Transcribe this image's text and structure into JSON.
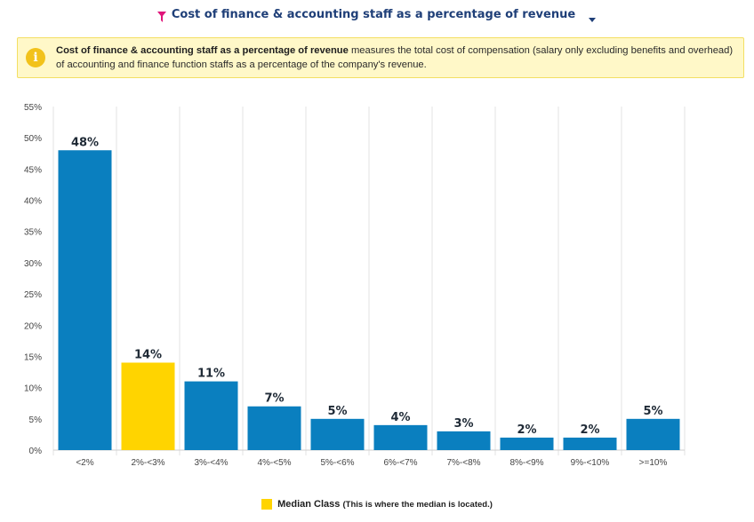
{
  "header": {
    "metric_title": "Cost of finance & accounting staff as a percentage of revenue",
    "filter_icon": "filter-funnel-icon",
    "dropdown_icon": "caret-down-icon",
    "filter_icon_color": "#e0157a",
    "title_color": "#1f3f78"
  },
  "info": {
    "icon": "info-icon",
    "lead": "Cost of finance & accounting staff as a percentage of revenue",
    "text_part1": " measures the total cost of compensation (salary only excluding benefits and overhead) of accounting and finance function staffs as a percentage of the company's revenue."
  },
  "chart_data": {
    "type": "bar",
    "categories": [
      "<2%",
      "2%-<3%",
      "3%-<4%",
      "4%-<5%",
      "5%-<6%",
      "6%-<7%",
      "7%-<8%",
      "8%-<9%",
      "9%-<10%",
      ">=10%"
    ],
    "values": [
      48,
      14,
      11,
      7,
      5,
      4,
      3,
      2,
      2,
      5
    ],
    "data_labels": [
      "48%",
      "14%",
      "11%",
      "7%",
      "5%",
      "4%",
      "3%",
      "2%",
      "2%",
      "5%"
    ],
    "median_index": 1,
    "ylim": [
      0,
      55
    ],
    "yticks": [
      0,
      5,
      10,
      15,
      20,
      25,
      30,
      35,
      40,
      45,
      50,
      55
    ],
    "ytick_labels": [
      "0%",
      "5%",
      "10%",
      "15%",
      "20%",
      "25%",
      "30%",
      "35%",
      "40%",
      "45%",
      "50%",
      "55%"
    ],
    "grid": "vertical",
    "colors": {
      "bar": "#0a7fbf",
      "median": "#ffd400",
      "grid": "#e3e3e3"
    },
    "legend": {
      "placement": "bottom-center"
    }
  },
  "legend": {
    "label": "Median Class",
    "note": "(This is where the median is located.)",
    "color": "#ffd400"
  }
}
